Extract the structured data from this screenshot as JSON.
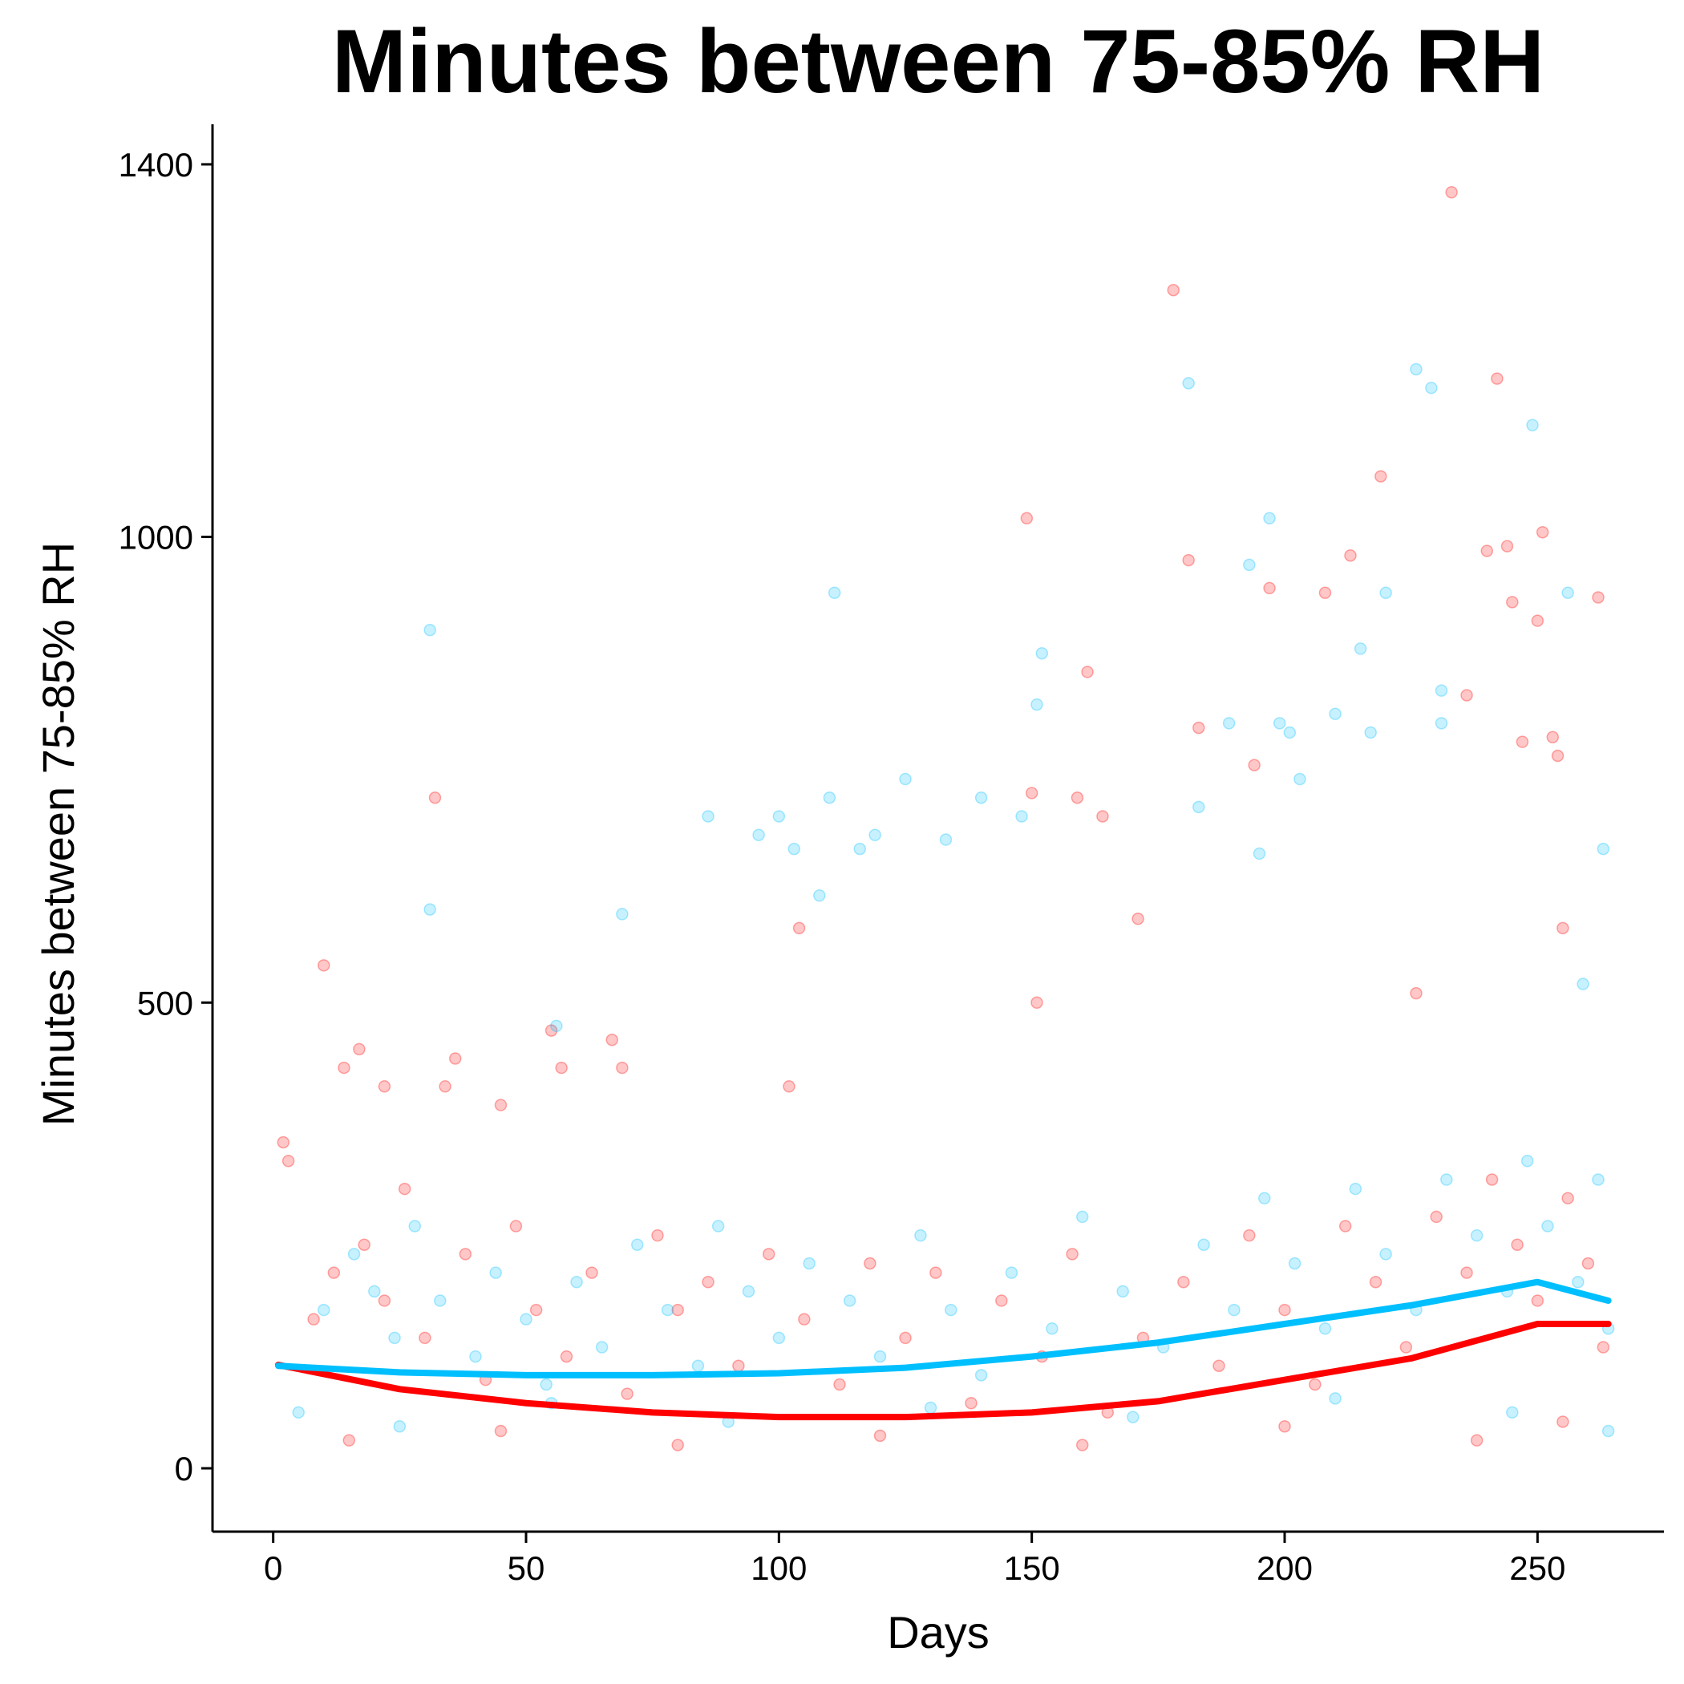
{
  "chart_data": {
    "type": "scatter",
    "title": "Minutes between 75-85% RH",
    "xlabel": "Days",
    "ylabel": "Minutes between 75-85% RH",
    "xlim": [
      -12,
      275
    ],
    "ylim": [
      -68,
      1443
    ],
    "x_ticks": [
      0,
      50,
      100,
      150,
      200,
      250
    ],
    "y_ticks": [
      0,
      500,
      1000,
      1400
    ],
    "grid": false,
    "legend": "none",
    "series": [
      {
        "color": "#ff0000",
        "point_opacity": 0.22,
        "trend": {
          "x": [
            1,
            25,
            50,
            75,
            100,
            125,
            150,
            175,
            200,
            225,
            250,
            264
          ],
          "y": [
            111,
            85,
            70,
            60,
            55,
            55,
            60,
            72,
            95,
            118,
            155,
            155
          ]
        },
        "points": [
          {
            "x": 2,
            "y": 350
          },
          {
            "x": 3,
            "y": 330
          },
          {
            "x": 10,
            "y": 540
          },
          {
            "x": 14,
            "y": 430
          },
          {
            "x": 17,
            "y": 450
          },
          {
            "x": 22,
            "y": 410
          },
          {
            "x": 32,
            "y": 720
          },
          {
            "x": 34,
            "y": 410
          },
          {
            "x": 36,
            "y": 440
          },
          {
            "x": 45,
            "y": 390
          },
          {
            "x": 55,
            "y": 470
          },
          {
            "x": 57,
            "y": 430
          },
          {
            "x": 67,
            "y": 460
          },
          {
            "x": 69,
            "y": 430
          },
          {
            "x": 104,
            "y": 580
          },
          {
            "x": 102,
            "y": 410
          },
          {
            "x": 149,
            "y": 1020
          },
          {
            "x": 150,
            "y": 725
          },
          {
            "x": 151,
            "y": 500
          },
          {
            "x": 161,
            "y": 855
          },
          {
            "x": 159,
            "y": 720
          },
          {
            "x": 164,
            "y": 700
          },
          {
            "x": 171,
            "y": 590
          },
          {
            "x": 178,
            "y": 1265
          },
          {
            "x": 181,
            "y": 975
          },
          {
            "x": 183,
            "y": 795
          },
          {
            "x": 194,
            "y": 755
          },
          {
            "x": 197,
            "y": 945
          },
          {
            "x": 208,
            "y": 940
          },
          {
            "x": 213,
            "y": 980
          },
          {
            "x": 219,
            "y": 1065
          },
          {
            "x": 226,
            "y": 510
          },
          {
            "x": 233,
            "y": 1370
          },
          {
            "x": 236,
            "y": 830
          },
          {
            "x": 240,
            "y": 985
          },
          {
            "x": 242,
            "y": 1170
          },
          {
            "x": 244,
            "y": 990
          },
          {
            "x": 245,
            "y": 930
          },
          {
            "x": 247,
            "y": 780
          },
          {
            "x": 250,
            "y": 910
          },
          {
            "x": 251,
            "y": 1005
          },
          {
            "x": 253,
            "y": 785
          },
          {
            "x": 254,
            "y": 765
          },
          {
            "x": 255,
            "y": 580
          },
          {
            "x": 262,
            "y": 935
          },
          {
            "x": 8,
            "y": 160
          },
          {
            "x": 12,
            "y": 210
          },
          {
            "x": 18,
            "y": 240
          },
          {
            "x": 22,
            "y": 180
          },
          {
            "x": 26,
            "y": 300
          },
          {
            "x": 30,
            "y": 140
          },
          {
            "x": 38,
            "y": 230
          },
          {
            "x": 42,
            "y": 95
          },
          {
            "x": 48,
            "y": 260
          },
          {
            "x": 52,
            "y": 170
          },
          {
            "x": 58,
            "y": 120
          },
          {
            "x": 63,
            "y": 210
          },
          {
            "x": 70,
            "y": 80
          },
          {
            "x": 76,
            "y": 250
          },
          {
            "x": 80,
            "y": 170
          },
          {
            "x": 86,
            "y": 200
          },
          {
            "x": 92,
            "y": 110
          },
          {
            "x": 98,
            "y": 230
          },
          {
            "x": 105,
            "y": 160
          },
          {
            "x": 112,
            "y": 90
          },
          {
            "x": 118,
            "y": 220
          },
          {
            "x": 125,
            "y": 140
          },
          {
            "x": 131,
            "y": 210
          },
          {
            "x": 138,
            "y": 70
          },
          {
            "x": 144,
            "y": 180
          },
          {
            "x": 152,
            "y": 120
          },
          {
            "x": 158,
            "y": 230
          },
          {
            "x": 165,
            "y": 60
          },
          {
            "x": 172,
            "y": 140
          },
          {
            "x": 180,
            "y": 200
          },
          {
            "x": 187,
            "y": 110
          },
          {
            "x": 193,
            "y": 250
          },
          {
            "x": 200,
            "y": 170
          },
          {
            "x": 206,
            "y": 90
          },
          {
            "x": 212,
            "y": 260
          },
          {
            "x": 218,
            "y": 200
          },
          {
            "x": 224,
            "y": 130
          },
          {
            "x": 230,
            "y": 270
          },
          {
            "x": 236,
            "y": 210
          },
          {
            "x": 241,
            "y": 310
          },
          {
            "x": 246,
            "y": 240
          },
          {
            "x": 250,
            "y": 180
          },
          {
            "x": 256,
            "y": 290
          },
          {
            "x": 260,
            "y": 220
          },
          {
            "x": 263,
            "y": 130
          },
          {
            "x": 15,
            "y": 30
          },
          {
            "x": 45,
            "y": 40
          },
          {
            "x": 80,
            "y": 25
          },
          {
            "x": 120,
            "y": 35
          },
          {
            "x": 160,
            "y": 25
          },
          {
            "x": 200,
            "y": 45
          },
          {
            "x": 238,
            "y": 30
          },
          {
            "x": 255,
            "y": 50
          }
        ]
      },
      {
        "color": "#00bfff",
        "point_opacity": 0.22,
        "trend": {
          "x": [
            1,
            25,
            50,
            75,
            100,
            125,
            150,
            175,
            200,
            225,
            250,
            264
          ],
          "y": [
            110,
            103,
            100,
            100,
            102,
            108,
            120,
            135,
            155,
            175,
            200,
            180
          ]
        },
        "points": [
          {
            "x": 31,
            "y": 900
          },
          {
            "x": 31,
            "y": 600
          },
          {
            "x": 56,
            "y": 475
          },
          {
            "x": 69,
            "y": 595
          },
          {
            "x": 86,
            "y": 700
          },
          {
            "x": 96,
            "y": 680
          },
          {
            "x": 100,
            "y": 700
          },
          {
            "x": 103,
            "y": 665
          },
          {
            "x": 108,
            "y": 615
          },
          {
            "x": 110,
            "y": 720
          },
          {
            "x": 111,
            "y": 940
          },
          {
            "x": 116,
            "y": 665
          },
          {
            "x": 119,
            "y": 680
          },
          {
            "x": 125,
            "y": 740
          },
          {
            "x": 133,
            "y": 675
          },
          {
            "x": 140,
            "y": 720
          },
          {
            "x": 148,
            "y": 700
          },
          {
            "x": 151,
            "y": 820
          },
          {
            "x": 152,
            "y": 875
          },
          {
            "x": 181,
            "y": 1165
          },
          {
            "x": 183,
            "y": 710
          },
          {
            "x": 189,
            "y": 800
          },
          {
            "x": 193,
            "y": 970
          },
          {
            "x": 195,
            "y": 660
          },
          {
            "x": 197,
            "y": 1020
          },
          {
            "x": 199,
            "y": 800
          },
          {
            "x": 201,
            "y": 790
          },
          {
            "x": 203,
            "y": 740
          },
          {
            "x": 210,
            "y": 810
          },
          {
            "x": 215,
            "y": 880
          },
          {
            "x": 217,
            "y": 790
          },
          {
            "x": 220,
            "y": 940
          },
          {
            "x": 226,
            "y": 1180
          },
          {
            "x": 229,
            "y": 1160
          },
          {
            "x": 231,
            "y": 835
          },
          {
            "x": 231,
            "y": 800
          },
          {
            "x": 249,
            "y": 1120
          },
          {
            "x": 256,
            "y": 940
          },
          {
            "x": 263,
            "y": 665
          },
          {
            "x": 259,
            "y": 520
          },
          {
            "x": 10,
            "y": 170
          },
          {
            "x": 16,
            "y": 230
          },
          {
            "x": 20,
            "y": 190
          },
          {
            "x": 24,
            "y": 140
          },
          {
            "x": 28,
            "y": 260
          },
          {
            "x": 33,
            "y": 180
          },
          {
            "x": 40,
            "y": 120
          },
          {
            "x": 44,
            "y": 210
          },
          {
            "x": 50,
            "y": 160
          },
          {
            "x": 54,
            "y": 90
          },
          {
            "x": 60,
            "y": 200
          },
          {
            "x": 65,
            "y": 130
          },
          {
            "x": 72,
            "y": 240
          },
          {
            "x": 78,
            "y": 170
          },
          {
            "x": 84,
            "y": 110
          },
          {
            "x": 88,
            "y": 260
          },
          {
            "x": 94,
            "y": 190
          },
          {
            "x": 100,
            "y": 140
          },
          {
            "x": 106,
            "y": 220
          },
          {
            "x": 114,
            "y": 180
          },
          {
            "x": 120,
            "y": 120
          },
          {
            "x": 128,
            "y": 250
          },
          {
            "x": 134,
            "y": 170
          },
          {
            "x": 140,
            "y": 100
          },
          {
            "x": 146,
            "y": 210
          },
          {
            "x": 154,
            "y": 150
          },
          {
            "x": 160,
            "y": 270
          },
          {
            "x": 168,
            "y": 190
          },
          {
            "x": 176,
            "y": 130
          },
          {
            "x": 184,
            "y": 240
          },
          {
            "x": 190,
            "y": 170
          },
          {
            "x": 196,
            "y": 290
          },
          {
            "x": 202,
            "y": 220
          },
          {
            "x": 208,
            "y": 150
          },
          {
            "x": 214,
            "y": 300
          },
          {
            "x": 220,
            "y": 230
          },
          {
            "x": 226,
            "y": 170
          },
          {
            "x": 232,
            "y": 310
          },
          {
            "x": 238,
            "y": 250
          },
          {
            "x": 244,
            "y": 190
          },
          {
            "x": 248,
            "y": 330
          },
          {
            "x": 252,
            "y": 260
          },
          {
            "x": 258,
            "y": 200
          },
          {
            "x": 262,
            "y": 310
          },
          {
            "x": 264,
            "y": 150
          },
          {
            "x": 5,
            "y": 60
          },
          {
            "x": 25,
            "y": 45
          },
          {
            "x": 55,
            "y": 70
          },
          {
            "x": 90,
            "y": 50
          },
          {
            "x": 130,
            "y": 65
          },
          {
            "x": 170,
            "y": 55
          },
          {
            "x": 210,
            "y": 75
          },
          {
            "x": 245,
            "y": 60
          },
          {
            "x": 264,
            "y": 40
          }
        ]
      }
    ]
  }
}
